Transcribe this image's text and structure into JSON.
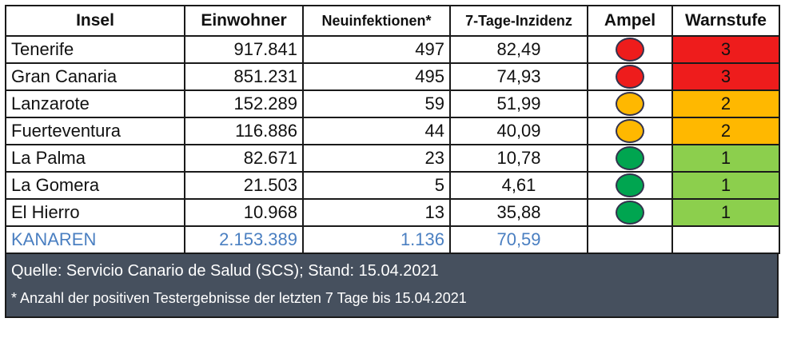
{
  "headers": {
    "insel": "Insel",
    "einwohner": "Einwohner",
    "neu": "Neuinfektionen*",
    "inzidenz": "7-Tage-Inzidenz",
    "ampel": "Ampel",
    "warnstufe": "Warnstufe"
  },
  "rows": [
    {
      "insel": "Tenerife",
      "einwohner": "917.841",
      "neu": "497",
      "inzidenz": "82,49",
      "ampel_color": "#ee1c1c",
      "warnstufe": "3",
      "warn_color": "#ee1c1c"
    },
    {
      "insel": "Gran Canaria",
      "einwohner": "851.231",
      "neu": "495",
      "inzidenz": "74,93",
      "ampel_color": "#ee1c1c",
      "warnstufe": "3",
      "warn_color": "#ee1c1c"
    },
    {
      "insel": "Lanzarote",
      "einwohner": "152.289",
      "neu": "59",
      "inzidenz": "51,99",
      "ampel_color": "#ffb800",
      "warnstufe": "2",
      "warn_color": "#ffb800"
    },
    {
      "insel": "Fuerteventura",
      "einwohner": "116.886",
      "neu": "44",
      "inzidenz": "40,09",
      "ampel_color": "#ffb800",
      "warnstufe": "2",
      "warn_color": "#ffb800"
    },
    {
      "insel": "La Palma",
      "einwohner": "82.671",
      "neu": "23",
      "inzidenz": "10,78",
      "ampel_color": "#00a550",
      "warnstufe": "1",
      "warn_color": "#8ccf4d"
    },
    {
      "insel": "La Gomera",
      "einwohner": "21.503",
      "neu": "5",
      "inzidenz": "4,61",
      "ampel_color": "#00a550",
      "warnstufe": "1",
      "warn_color": "#8ccf4d"
    },
    {
      "insel": "El Hierro",
      "einwohner": "10.968",
      "neu": "13",
      "inzidenz": "35,88",
      "ampel_color": "#00a550",
      "warnstufe": "1",
      "warn_color": "#8ccf4d"
    }
  ],
  "total": {
    "insel": "KANAREN",
    "einwohner": "2.153.389",
    "neu": "1.136",
    "inzidenz": "70,59"
  },
  "footer": {
    "source": "Quelle: Servicio Canario de Salud (SCS); Stand: 15.04.2021",
    "note": "* Anzahl der positiven Testergebnisse der letzten 7 Tage bis 15.04.2021"
  }
}
